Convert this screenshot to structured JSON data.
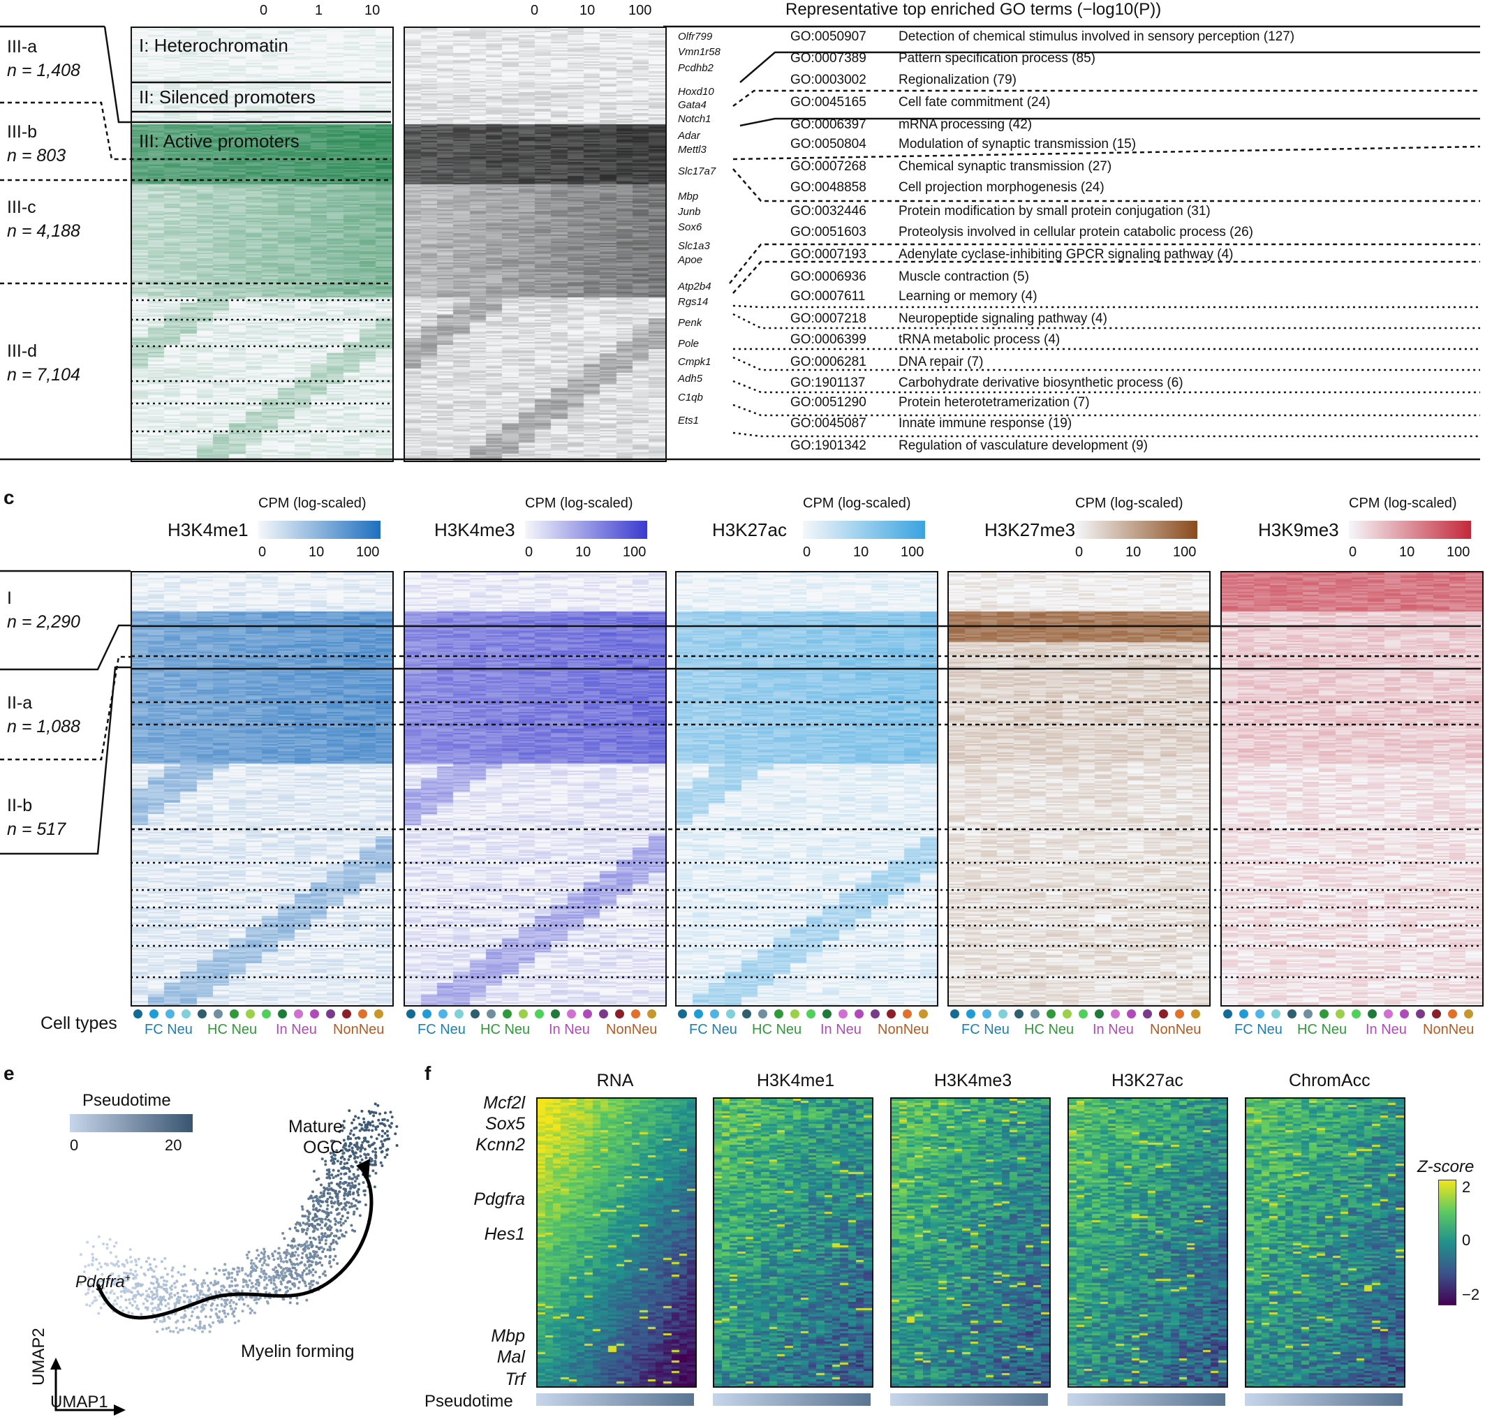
{
  "top": {
    "go_title": "Representative top enriched GO terms (−log10(P))",
    "scale1_ticks": [
      "0",
      "1",
      "10"
    ],
    "scale2_ticks": [
      "0",
      "10",
      "100"
    ],
    "clusters": [
      {
        "name": "III-a",
        "n": "n = 1,408"
      },
      {
        "name": "III-b",
        "n": "n = 803"
      },
      {
        "name": "III-c",
        "n": "n = 4,188"
      },
      {
        "name": "III-d",
        "n": "n = 7,104"
      }
    ],
    "region_labels": [
      "I: Heterochromatin",
      "II: Silenced promoters",
      "III: Active promoters"
    ],
    "genes": [
      "Olfr799",
      "Vmn1r58",
      "Pcdhb2",
      "Hoxd10",
      "Gata4",
      "Notch1",
      "Adar",
      "Mettl3",
      "Slc17a7",
      "Mbp",
      "Junb",
      "Sox6",
      "Slc1a3",
      "Apoe",
      "Atp2b4",
      "Rgs14",
      "Penk",
      "Pole",
      "Cmpk1",
      "Adh5",
      "C1qb",
      "Ets1"
    ],
    "go_terms": [
      {
        "id": "GO:0050907",
        "term": "Detection of chemical stimulus involved in sensory perception (127)"
      },
      {
        "id": "GO:0007389",
        "term": "Pattern specification process (85)"
      },
      {
        "id": "GO:0003002",
        "term": "Regionalization (79)"
      },
      {
        "id": "GO:0045165",
        "term": "Cell fate commitment (24)"
      },
      {
        "id": "GO:0006397",
        "term": "mRNA processing (42)"
      },
      {
        "id": "GO:0050804",
        "term": "Modulation of synaptic transmission (15)"
      },
      {
        "id": "GO:0007268",
        "term": "Chemical synaptic transmission (27)"
      },
      {
        "id": "GO:0048858",
        "term": "Cell projection morphogenesis (24)"
      },
      {
        "id": "GO:0032446",
        "term": "Protein modification by small protein conjugation (31)"
      },
      {
        "id": "GO:0051603",
        "term": "Proteolysis involved in cellular protein catabolic process (26)"
      },
      {
        "id": "GO:0007193",
        "term": "Adenylate cyclase-inhibiting GPCR signaling pathway (4)"
      },
      {
        "id": "GO:0006936",
        "term": "Muscle contraction (5)"
      },
      {
        "id": "GO:0007611",
        "term": "Learning or memory (4)"
      },
      {
        "id": "GO:0007218",
        "term": "Neuropeptide signaling pathway (4)"
      },
      {
        "id": "GO:0006399",
        "term": "tRNA metabolic process (4)"
      },
      {
        "id": "GO:0006281",
        "term": "DNA repair (7)"
      },
      {
        "id": "GO:1901137",
        "term": "Carbohydrate derivative biosynthetic process (6)"
      },
      {
        "id": "GO:0051290",
        "term": "Protein heterotetramerization (7)"
      },
      {
        "id": "GO:0045087",
        "term": "Innate immune response (19)"
      },
      {
        "id": "GO:1901342",
        "term": "Regulation of vasculature development (9)"
      }
    ]
  },
  "panel_c": {
    "letter": "c",
    "cpm_label": "CPM (log-scaled)",
    "ticks": [
      "0",
      "10",
      "100"
    ],
    "marks": [
      {
        "name": "H3K4me1",
        "color": "#1f6fbf"
      },
      {
        "name": "H3K4me3",
        "color": "#3a3ad0"
      },
      {
        "name": "H3K27ac",
        "color": "#3aa3e0"
      },
      {
        "name": "H3K27me3",
        "color": "#8a4a1c"
      },
      {
        "name": "H3K9me3",
        "color": "#c4283a"
      }
    ],
    "clusters": [
      {
        "name": "I",
        "n": "n = 2,290"
      },
      {
        "name": "II-a",
        "n": "n = 1,088"
      },
      {
        "name": "II-b",
        "n": "n = 517"
      }
    ],
    "cell_types_label": "Cell types",
    "groups": [
      {
        "label": "FC Neu",
        "color": "#1b7fb8"
      },
      {
        "label": "HC Neu",
        "color": "#2e9a3a"
      },
      {
        "label": "In Neu",
        "color": "#b04ab8"
      },
      {
        "label": "NonNeu",
        "color": "#b55a22"
      }
    ],
    "dot_colors": [
      "#136b93",
      "#1f9bd6",
      "#4fb3e6",
      "#7fd0d8",
      "#2f5f6f",
      "#6f8fa0",
      "#2e9a3a",
      "#9ad04a",
      "#4fd05a",
      "#1f7a3a",
      "#d070d0",
      "#b04ab8",
      "#7a3a8a",
      "#8a1f2a",
      "#e0702a",
      "#c8962a"
    ]
  },
  "panel_e": {
    "letter": "e",
    "legend_title": "Pseudotime",
    "legend_min": "0",
    "legend_max": "20",
    "label_mature1": "Mature",
    "label_mature2": "OGC",
    "label_pdgfra": "Pdgfra",
    "label_pdgfra_sup": "+",
    "label_myelin": "Myelin forming",
    "xaxis": "UMAP1",
    "yaxis": "UMAP2"
  },
  "panel_f": {
    "letter": "f",
    "columns": [
      "RNA",
      "H3K4me1",
      "H3K4me3",
      "H3K27ac",
      "ChromAcc"
    ],
    "genes": [
      "Mcf2l",
      "Sox5",
      "Kcnn2",
      "Pdgfra",
      "Hes1",
      "Mbp",
      "Mal",
      "Trf"
    ],
    "pseudotime_label": "Pseudotime",
    "zscore_label": "Z-score",
    "zscore_ticks": [
      "2",
      "0",
      "−2"
    ]
  }
}
